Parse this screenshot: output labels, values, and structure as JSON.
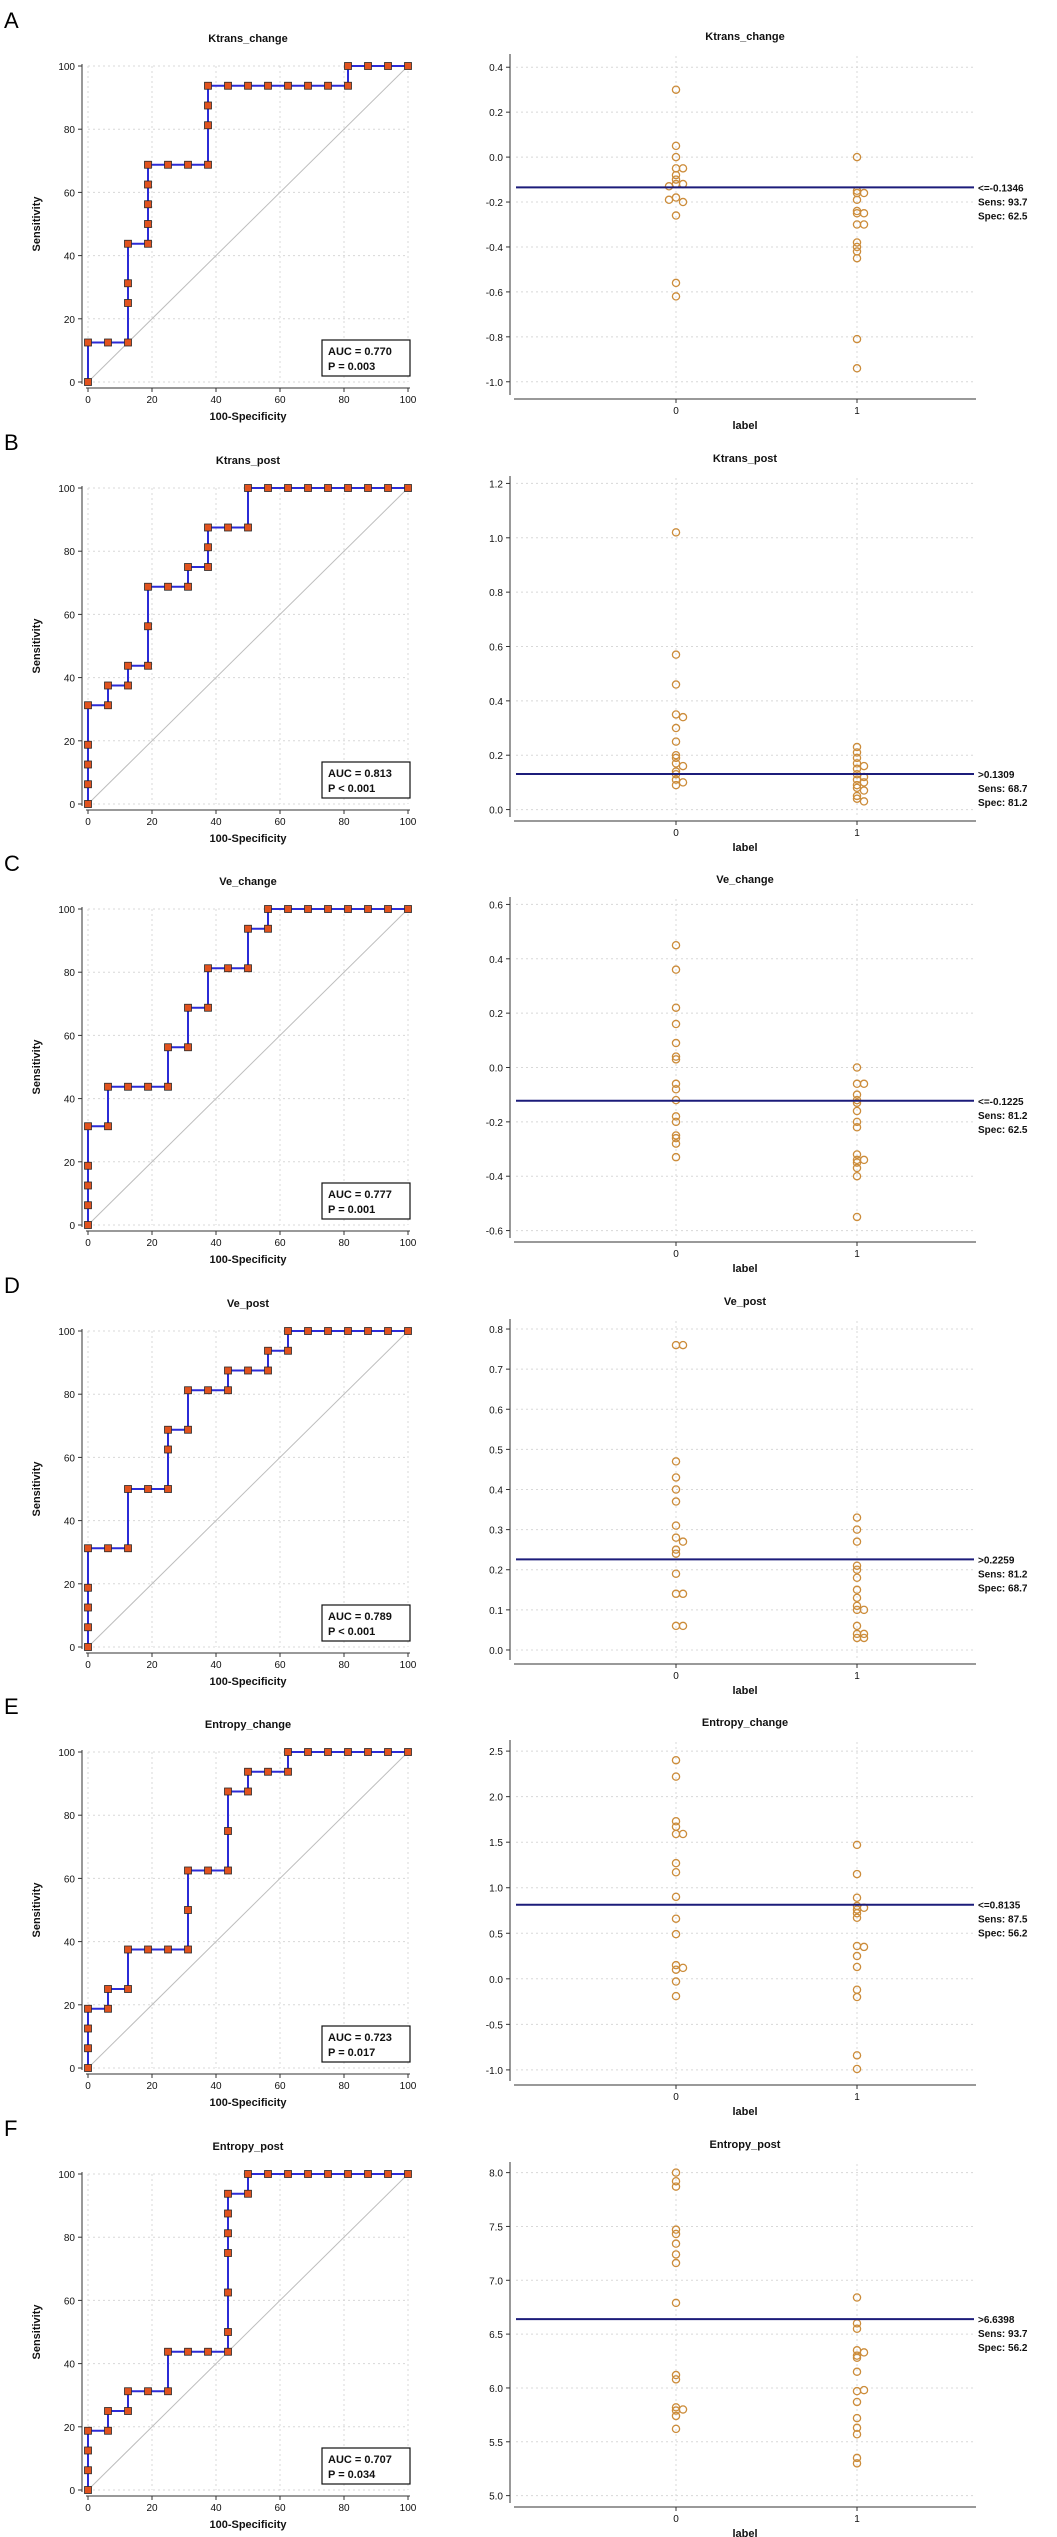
{
  "chart_data": [
    {
      "panel": "A",
      "type": "line",
      "subtype": "roc",
      "title": "Ktrans_change",
      "xlabel": "100-Specificity",
      "ylabel": "Sensitivity",
      "xlim": [
        0,
        100
      ],
      "ylim": [
        0,
        100
      ],
      "xticks": [
        "0",
        "20",
        "40",
        "60",
        "80",
        "100"
      ],
      "yticks": [
        "0",
        "20",
        "40",
        "60",
        "80",
        "100"
      ],
      "auc_label": "AUC = 0.770",
      "p_label": "P = 0.003",
      "x": [
        0,
        0,
        6.25,
        12.5,
        12.5,
        12.5,
        12.5,
        18.75,
        18.75,
        18.75,
        18.75,
        18.75,
        25,
        31.25,
        37.5,
        37.5,
        37.5,
        37.5,
        43.75,
        50,
        56.25,
        62.5,
        68.75,
        75,
        81.25,
        81.25,
        87.5,
        93.75,
        100
      ],
      "y": [
        0,
        12.5,
        12.5,
        12.5,
        25,
        31.25,
        43.75,
        43.75,
        50,
        56.25,
        62.5,
        68.75,
        68.75,
        68.75,
        68.75,
        81.25,
        87.5,
        93.75,
        93.75,
        93.75,
        93.75,
        93.75,
        93.75,
        93.75,
        93.75,
        100,
        100,
        100,
        100
      ]
    },
    {
      "panel": "A",
      "type": "scatter",
      "subtype": "dot",
      "title": "Ktrans_change",
      "xlabel": "label",
      "categories": [
        "0",
        "1"
      ],
      "ylim": [
        -1.05,
        0.45
      ],
      "yticks": [
        "-1.0",
        "-0.8",
        "-0.6",
        "-0.4",
        "-0.2",
        "0.0",
        "0.2",
        "0.4"
      ],
      "criterion": -0.1346,
      "criterion_label": "<=-0.1346",
      "sens_label": "Sens: 93.7",
      "spec_label": "Spec: 62.5",
      "groups": [
        [
          0.3,
          0.05,
          0.0,
          -0.05,
          -0.08,
          -0.05,
          -0.12,
          -0.12,
          -0.13,
          -0.18,
          -0.2,
          -0.19,
          -0.26,
          -0.56,
          -0.62,
          -0.1
        ],
        [
          0.0,
          -0.15,
          -0.16,
          -0.16,
          -0.19,
          -0.24,
          -0.25,
          -0.3,
          -0.25,
          -0.3,
          -0.38,
          -0.4,
          -0.42,
          -0.45,
          -0.81,
          -0.94
        ]
      ]
    },
    {
      "panel": "B",
      "type": "line",
      "subtype": "roc",
      "title": "Ktrans_post",
      "xlabel": "100-Specificity",
      "ylabel": "Sensitivity",
      "xlim": [
        0,
        100
      ],
      "ylim": [
        0,
        100
      ],
      "xticks": [
        "0",
        "20",
        "40",
        "60",
        "80",
        "100"
      ],
      "yticks": [
        "0",
        "20",
        "40",
        "60",
        "80",
        "100"
      ],
      "auc_label": "AUC = 0.813",
      "p_label": "P < 0.001",
      "x": [
        0,
        0,
        0,
        0,
        0,
        6.25,
        6.25,
        12.5,
        12.5,
        18.75,
        18.75,
        18.75,
        25,
        31.25,
        31.25,
        37.5,
        37.5,
        37.5,
        43.75,
        50,
        50,
        56.25,
        62.5,
        68.75,
        75,
        81.25,
        87.5,
        93.75,
        100
      ],
      "y": [
        0,
        6.25,
        12.5,
        18.75,
        31.25,
        31.25,
        37.5,
        37.5,
        43.75,
        43.75,
        56.25,
        68.75,
        68.75,
        68.75,
        75,
        75,
        81.25,
        87.5,
        87.5,
        87.5,
        100,
        100,
        100,
        100,
        100,
        100,
        100,
        100,
        100
      ]
    },
    {
      "panel": "B",
      "type": "scatter",
      "subtype": "dot",
      "title": "Ktrans_post",
      "xlabel": "label",
      "categories": [
        "0",
        "1"
      ],
      "ylim": [
        -0.02,
        1.22
      ],
      "yticks": [
        "0.0",
        "0.2",
        "0.4",
        "0.6",
        "0.8",
        "1.0",
        "1.2"
      ],
      "criterion": 0.1309,
      "criterion_label": ">0.1309",
      "sens_label": "Sens: 68.7",
      "spec_label": "Spec: 81.2",
      "groups": [
        [
          1.02,
          0.57,
          0.46,
          0.35,
          0.34,
          0.3,
          0.25,
          0.2,
          0.19,
          0.17,
          0.16,
          0.14,
          0.13,
          0.11,
          0.1,
          0.09
        ],
        [
          0.23,
          0.21,
          0.19,
          0.17,
          0.16,
          0.15,
          0.13,
          0.12,
          0.11,
          0.1,
          0.09,
          0.08,
          0.07,
          0.05,
          0.04,
          0.03
        ]
      ]
    },
    {
      "panel": "C",
      "type": "line",
      "subtype": "roc",
      "title": "Ve_change",
      "xlabel": "100-Specificity",
      "ylabel": "Sensitivity",
      "xlim": [
        0,
        100
      ],
      "ylim": [
        0,
        100
      ],
      "xticks": [
        "0",
        "20",
        "40",
        "60",
        "80",
        "100"
      ],
      "yticks": [
        "0",
        "20",
        "40",
        "60",
        "80",
        "100"
      ],
      "auc_label": "AUC = 0.777",
      "p_label": "P = 0.001",
      "x": [
        0,
        0,
        0,
        0,
        0,
        6.25,
        6.25,
        12.5,
        18.75,
        25,
        25,
        31.25,
        31.25,
        37.5,
        37.5,
        43.75,
        50,
        50,
        56.25,
        56.25,
        62.5,
        68.75,
        75,
        81.25,
        87.5,
        93.75,
        100
      ],
      "y": [
        0,
        6.25,
        12.5,
        18.75,
        31.25,
        31.25,
        43.75,
        43.75,
        43.75,
        43.75,
        56.25,
        56.25,
        68.75,
        68.75,
        81.25,
        81.25,
        81.25,
        93.75,
        93.75,
        100,
        100,
        100,
        100,
        100,
        100,
        100,
        100
      ]
    },
    {
      "panel": "C",
      "type": "scatter",
      "subtype": "dot",
      "title": "Ve_change",
      "xlabel": "label",
      "categories": [
        "0",
        "1"
      ],
      "ylim": [
        -0.62,
        0.62
      ],
      "yticks": [
        "-0.6",
        "-0.4",
        "-0.2",
        "0.0",
        "0.2",
        "0.4",
        "0.6"
      ],
      "criterion": -0.1225,
      "criterion_label": "<=-0.1225",
      "sens_label": "Sens: 81.2",
      "spec_label": "Spec: 62.5",
      "groups": [
        [
          0.45,
          0.36,
          0.22,
          0.16,
          0.09,
          0.04,
          0.03,
          -0.06,
          -0.08,
          -0.12,
          -0.18,
          -0.2,
          -0.26,
          -0.28,
          -0.25,
          -0.33
        ],
        [
          0.0,
          -0.06,
          -0.06,
          -0.1,
          -0.12,
          -0.16,
          -0.2,
          -0.22,
          -0.32,
          -0.34,
          -0.35,
          -0.34,
          -0.37,
          -0.4,
          -0.55,
          -0.13
        ]
      ]
    },
    {
      "panel": "D",
      "type": "line",
      "subtype": "roc",
      "title": "Ve_post",
      "xlabel": "100-Specificity",
      "ylabel": "Sensitivity",
      "xlim": [
        0,
        100
      ],
      "ylim": [
        0,
        100
      ],
      "xticks": [
        "0",
        "20",
        "40",
        "60",
        "80",
        "100"
      ],
      "yticks": [
        "0",
        "20",
        "40",
        "60",
        "80",
        "100"
      ],
      "auc_label": "AUC = 0.789",
      "p_label": "P < 0.001",
      "x": [
        0,
        0,
        0,
        0,
        0,
        6.25,
        12.5,
        12.5,
        18.75,
        25,
        25,
        25,
        31.25,
        31.25,
        37.5,
        43.75,
        43.75,
        50,
        56.25,
        56.25,
        62.5,
        62.5,
        68.75,
        75,
        81.25,
        87.5,
        93.75,
        100
      ],
      "y": [
        0,
        6.25,
        12.5,
        18.75,
        31.25,
        31.25,
        31.25,
        50,
        50,
        50,
        62.5,
        68.75,
        68.75,
        81.25,
        81.25,
        81.25,
        87.5,
        87.5,
        87.5,
        93.75,
        93.75,
        100,
        100,
        100,
        100,
        100,
        100,
        100
      ]
    },
    {
      "panel": "D",
      "type": "scatter",
      "subtype": "dot",
      "title": "Ve_post",
      "xlabel": "label",
      "categories": [
        "0",
        "1"
      ],
      "ylim": [
        -0.02,
        0.82
      ],
      "yticks": [
        "0.0",
        "0.1",
        "0.2",
        "0.3",
        "0.4",
        "0.5",
        "0.6",
        "0.7",
        "0.8"
      ],
      "criterion": 0.2259,
      "criterion_label": ">0.2259",
      "sens_label": "Sens: 81.2",
      "spec_label": "Spec: 68.7",
      "groups": [
        [
          0.76,
          0.76,
          0.47,
          0.43,
          0.4,
          0.37,
          0.31,
          0.28,
          0.27,
          0.25,
          0.24,
          0.19,
          0.14,
          0.14,
          0.06,
          0.06
        ],
        [
          0.33,
          0.3,
          0.27,
          0.21,
          0.2,
          0.18,
          0.15,
          0.13,
          0.11,
          0.1,
          0.1,
          0.06,
          0.04,
          0.04,
          0.03,
          0.03
        ]
      ]
    },
    {
      "panel": "E",
      "type": "line",
      "subtype": "roc",
      "title": "Entropy_change",
      "xlabel": "100-Specificity",
      "ylabel": "Sensitivity",
      "xlim": [
        0,
        100
      ],
      "ylim": [
        0,
        100
      ],
      "xticks": [
        "0",
        "20",
        "40",
        "60",
        "80",
        "100"
      ],
      "yticks": [
        "0",
        "20",
        "40",
        "60",
        "80",
        "100"
      ],
      "auc_label": "AUC = 0.723",
      "p_label": "P = 0.017",
      "x": [
        0,
        0,
        0,
        0,
        6.25,
        6.25,
        12.5,
        12.5,
        18.75,
        25,
        31.25,
        31.25,
        31.25,
        37.5,
        43.75,
        43.75,
        43.75,
        50,
        50,
        56.25,
        62.5,
        62.5,
        68.75,
        75,
        81.25,
        87.5,
        93.75,
        100
      ],
      "y": [
        0,
        6.25,
        12.5,
        18.75,
        18.75,
        25,
        25,
        37.5,
        37.5,
        37.5,
        37.5,
        50,
        62.5,
        62.5,
        62.5,
        75,
        87.5,
        87.5,
        93.75,
        93.75,
        93.75,
        100,
        100,
        100,
        100,
        100,
        100,
        100
      ]
    },
    {
      "panel": "E",
      "type": "scatter",
      "subtype": "dot",
      "title": "Entropy_change",
      "xlabel": "label",
      "categories": [
        "0",
        "1"
      ],
      "ylim": [
        -1.1,
        2.6
      ],
      "yticks": [
        "-1.0",
        "-0.5",
        "0.0",
        "0.5",
        "1.0",
        "1.5",
        "2.0",
        "2.5"
      ],
      "criterion": 0.8135,
      "criterion_label": "<=0.8135",
      "sens_label": "Sens: 87.5",
      "spec_label": "Spec: 56.2",
      "groups": [
        [
          2.4,
          2.22,
          1.73,
          1.67,
          1.59,
          1.59,
          1.27,
          1.17,
          0.9,
          0.66,
          0.49,
          0.15,
          0.1,
          0.12,
          -0.03,
          -0.19
        ],
        [
          1.47,
          1.15,
          0.89,
          0.8,
          0.76,
          0.78,
          0.72,
          0.67,
          0.36,
          0.35,
          0.25,
          0.13,
          -0.12,
          -0.2,
          -0.84,
          -0.99
        ]
      ]
    },
    {
      "panel": "F",
      "type": "line",
      "subtype": "roc",
      "title": "Entropy_post",
      "xlabel": "100-Specificity",
      "ylabel": "Sensitivity",
      "xlim": [
        0,
        100
      ],
      "ylim": [
        0,
        100
      ],
      "xticks": [
        "0",
        "20",
        "40",
        "60",
        "80",
        "100"
      ],
      "yticks": [
        "0",
        "20",
        "40",
        "60",
        "80",
        "100"
      ],
      "auc_label": "AUC = 0.707",
      "p_label": "P = 0.034",
      "x": [
        0,
        0,
        0,
        0,
        6.25,
        6.25,
        12.5,
        12.5,
        18.75,
        25,
        25,
        31.25,
        37.5,
        43.75,
        43.75,
        43.75,
        43.75,
        43.75,
        43.75,
        43.75,
        50,
        50,
        56.25,
        62.5,
        68.75,
        75,
        81.25,
        87.5,
        93.75,
        100
      ],
      "y": [
        0,
        6.25,
        12.5,
        18.75,
        18.75,
        25,
        25,
        31.25,
        31.25,
        31.25,
        43.75,
        43.75,
        43.75,
        43.75,
        50,
        62.5,
        75,
        81.25,
        87.5,
        93.75,
        93.75,
        100,
        100,
        100,
        100,
        100,
        100,
        100,
        100,
        100
      ]
    },
    {
      "panel": "F",
      "type": "scatter",
      "subtype": "dot",
      "title": "Entropy_post",
      "xlabel": "label",
      "categories": [
        "0",
        "1"
      ],
      "ylim": [
        4.95,
        8.08
      ],
      "yticks": [
        "5.0",
        "5.5",
        "6.0",
        "6.5",
        "7.0",
        "7.5",
        "8.0"
      ],
      "criterion": 6.6398,
      "criterion_label": ">6.6398",
      "sens_label": "Sens: 93.7",
      "spec_label": "Spec: 56.2",
      "groups": [
        [
          8.0,
          7.92,
          7.87,
          7.47,
          7.43,
          7.34,
          7.24,
          7.16,
          6.79,
          6.12,
          6.08,
          5.82,
          5.79,
          5.8,
          5.74,
          5.62
        ],
        [
          6.84,
          6.6,
          6.55,
          6.35,
          6.33,
          6.3,
          6.28,
          6.15,
          5.97,
          5.98,
          5.87,
          5.72,
          5.63,
          5.57,
          5.3,
          5.35
        ]
      ]
    }
  ],
  "panel_letters": [
    "A",
    "B",
    "C",
    "D",
    "E",
    "F"
  ],
  "colors": {
    "roc_line": "#2b2bd6",
    "roc_marker": "#e2531f",
    "marker_edge": "#2a2a2a",
    "diagonal": "#bdbdbd",
    "grid": "#d8d8d8",
    "dot_edge": "#cc8c3a",
    "criterion_line": "#1c1c7a",
    "axis": "#333333"
  }
}
